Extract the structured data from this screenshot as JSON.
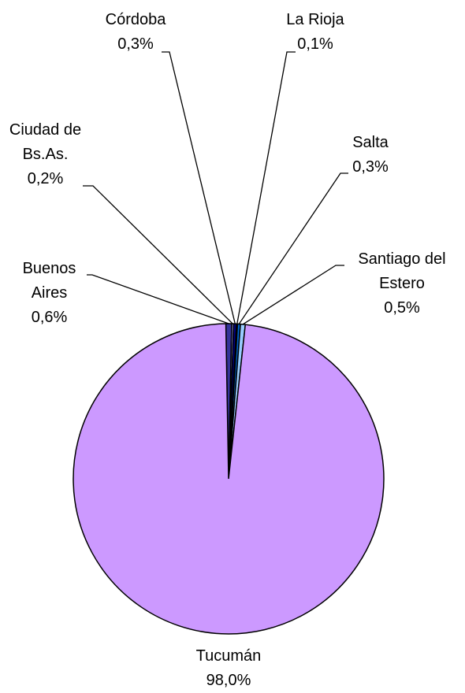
{
  "chart_data": {
    "type": "pie",
    "categories": [
      "Buenos Aires",
      "Ciudad de Bs.As.",
      "Córdoba",
      "La Rioja",
      "Salta",
      "Santiago del Estero",
      "Tucumán"
    ],
    "values": [
      0.6,
      0.2,
      0.3,
      0.1,
      0.3,
      0.5,
      98.0
    ],
    "value_labels": [
      "0,6%",
      "0,2%",
      "0,3%",
      "0,1%",
      "0,3%",
      "0,5%",
      "98,0%"
    ],
    "colors": [
      "#333399",
      "#9999ff",
      "#000080",
      "#ccffff",
      "#0066cc",
      "#99ccff",
      "#cc99ff"
    ]
  }
}
